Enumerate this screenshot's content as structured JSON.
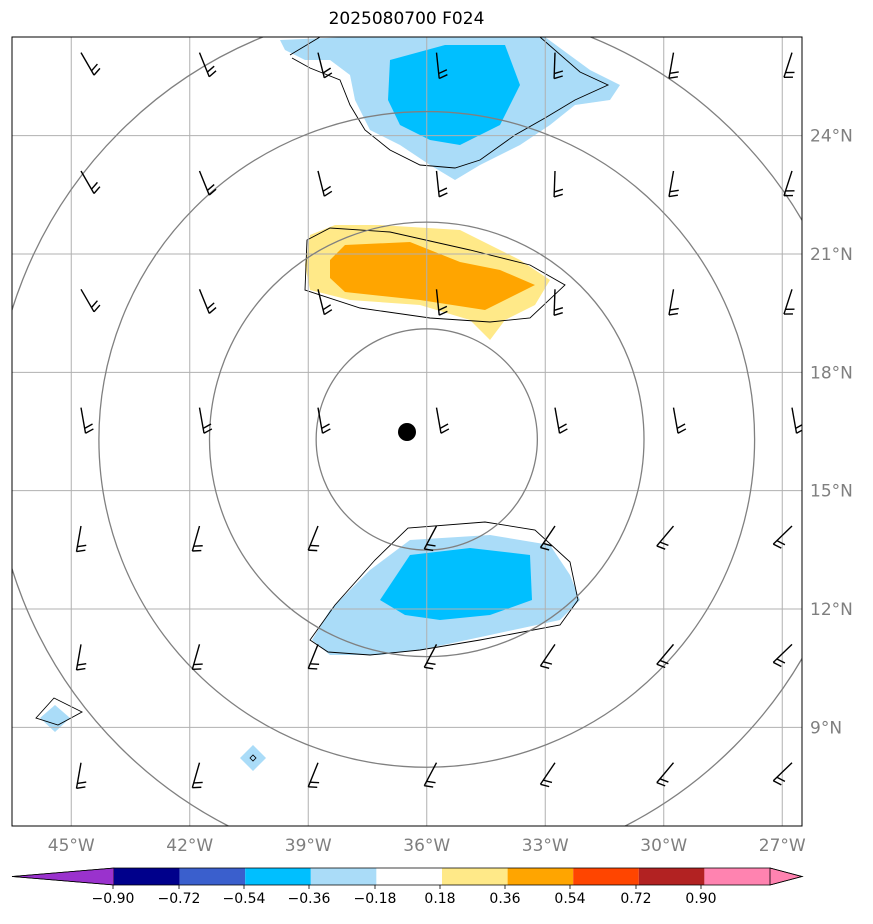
{
  "title": "2025080700 F024",
  "map": {
    "lon_range": [
      -46.5,
      -26.5
    ],
    "lat_range": [
      6.5,
      26.5
    ],
    "lon_ticks": [
      {
        "value": -45,
        "label": "45°W"
      },
      {
        "value": -42,
        "label": "42°W"
      },
      {
        "value": -39,
        "label": "39°W"
      },
      {
        "value": -36,
        "label": "36°W"
      },
      {
        "value": -33,
        "label": "33°W"
      },
      {
        "value": -30,
        "label": "30°W"
      },
      {
        "value": -27,
        "label": "27°W"
      }
    ],
    "lat_ticks": [
      {
        "value": 24,
        "label": "24°N"
      },
      {
        "value": 21,
        "label": "21°N"
      },
      {
        "value": 18,
        "label": "18°N"
      },
      {
        "value": 15,
        "label": "15°N"
      },
      {
        "value": 12,
        "label": "12°N"
      },
      {
        "value": 9,
        "label": "9°N"
      }
    ],
    "center": {
      "lon": -36.0,
      "lat": 16.3
    },
    "range_rings_deg": [
      2.8,
      5.5,
      8.3,
      11.0
    ],
    "colors": {
      "light_blue": "#aadcf8",
      "blue": "#00bfff",
      "light_yellow": "#ffe988",
      "orange": "#ffa500",
      "ring": "#808080",
      "grid": "#b0b0b0"
    }
  },
  "colorbar": {
    "labels": [
      "−0.90",
      "−0.72",
      "−0.54",
      "−0.36",
      "−0.18",
      "0.18",
      "0.36",
      "0.54",
      "0.72",
      "0.90"
    ],
    "colors": [
      "#9a32cd",
      "#00008b",
      "#3a5fcd",
      "#00bfff",
      "#aadcf8",
      "#ffffff",
      "#ffe988",
      "#ffa500",
      "#ff4500",
      "#b22222",
      "#ff83b0",
      "#ff83b0"
    ]
  }
}
